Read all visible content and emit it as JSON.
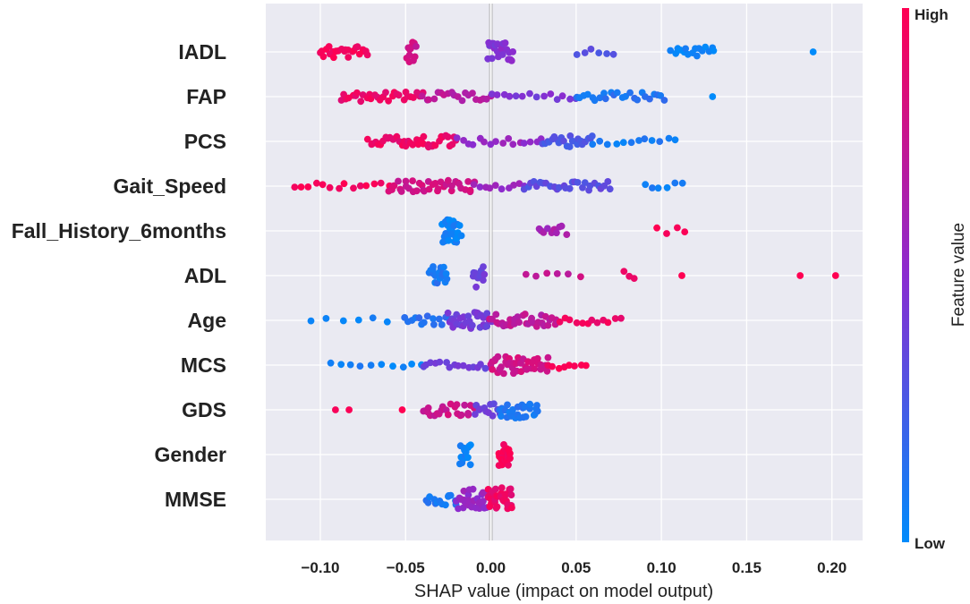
{
  "chart_data": {
    "type": "scatter",
    "subtype": "shap-beeswarm",
    "xlabel": "SHAP value (impact on model output)",
    "xlim": [
      -0.132,
      0.218
    ],
    "xticks": [
      -0.1,
      -0.05,
      0.0,
      0.05,
      0.1,
      0.15,
      0.2
    ],
    "xtick_labels": [
      "−0.10",
      "−0.05",
      "0.00",
      "0.05",
      "0.10",
      "0.15",
      "0.20"
    ],
    "grid": true,
    "zero_line": true,
    "colorbar": {
      "title": "Feature value",
      "high_label": "High",
      "low_label": "Low",
      "high_color": "#ff0052",
      "mid_color": "#8a2cd0",
      "low_color": "#008bfb"
    },
    "features": [
      {
        "name": "IADL",
        "segments": [
          {
            "from": -0.1,
            "to": -0.072,
            "n": 24,
            "v": 0.97
          },
          {
            "from": -0.049,
            "to": -0.044,
            "n": 12,
            "v": 0.78
          },
          {
            "from": -0.002,
            "to": 0.013,
            "n": 22,
            "v": 0.48
          },
          {
            "from": 0.05,
            "to": 0.072,
            "n": 6,
            "v": 0.28
          },
          {
            "from": 0.106,
            "to": 0.131,
            "n": 16,
            "v": 0.06
          },
          {
            "from": 0.189,
            "to": 0.189,
            "n": 1,
            "v": 0.0
          }
        ]
      },
      {
        "name": "FAP",
        "segments": [
          {
            "from": -0.088,
            "to": -0.04,
            "n": 30,
            "v": 0.92
          },
          {
            "from": -0.04,
            "to": 0.0,
            "n": 20,
            "v": 0.7
          },
          {
            "from": 0.0,
            "to": 0.05,
            "n": 14,
            "v": 0.45
          },
          {
            "from": 0.05,
            "to": 0.102,
            "n": 24,
            "v": 0.12
          },
          {
            "from": 0.13,
            "to": 0.13,
            "n": 1,
            "v": 0.0
          }
        ]
      },
      {
        "name": "PCS",
        "segments": [
          {
            "from": -0.072,
            "to": -0.02,
            "n": 40,
            "v": 0.92
          },
          {
            "from": -0.02,
            "to": 0.03,
            "n": 16,
            "v": 0.55
          },
          {
            "from": 0.03,
            "to": 0.06,
            "n": 22,
            "v": 0.28
          },
          {
            "from": 0.06,
            "to": 0.108,
            "n": 12,
            "v": 0.08
          }
        ]
      },
      {
        "name": "Gait_Speed",
        "segments": [
          {
            "from": -0.115,
            "to": -0.06,
            "n": 14,
            "v": 0.95
          },
          {
            "from": -0.06,
            "to": -0.01,
            "n": 38,
            "v": 0.8
          },
          {
            "from": -0.01,
            "to": 0.02,
            "n": 10,
            "v": 0.55
          },
          {
            "from": 0.02,
            "to": 0.07,
            "n": 28,
            "v": 0.32
          },
          {
            "from": 0.09,
            "to": 0.112,
            "n": 6,
            "v": 0.06
          }
        ]
      },
      {
        "name": "Fall_History_6months",
        "segments": [
          {
            "from": -0.028,
            "to": -0.018,
            "n": 36,
            "v": 0.05
          },
          {
            "from": 0.028,
            "to": 0.044,
            "n": 10,
            "v": 0.62
          },
          {
            "from": 0.098,
            "to": 0.114,
            "n": 4,
            "v": 0.98
          }
        ]
      },
      {
        "name": "ADL",
        "segments": [
          {
            "from": -0.036,
            "to": -0.026,
            "n": 20,
            "v": 0.1
          },
          {
            "from": -0.01,
            "to": -0.004,
            "n": 12,
            "v": 0.38
          },
          {
            "from": 0.02,
            "to": 0.052,
            "n": 6,
            "v": 0.75
          },
          {
            "from": 0.078,
            "to": 0.084,
            "n": 3,
            "v": 0.97
          },
          {
            "from": 0.112,
            "to": 0.112,
            "n": 1,
            "v": 1.0
          },
          {
            "from": 0.182,
            "to": 0.202,
            "n": 2,
            "v": 1.0
          }
        ]
      },
      {
        "name": "Age",
        "segments": [
          {
            "from": -0.105,
            "to": -0.06,
            "n": 6,
            "v": 0.02
          },
          {
            "from": -0.05,
            "to": -0.025,
            "n": 14,
            "v": 0.15
          },
          {
            "from": -0.025,
            "to": 0.0,
            "n": 32,
            "v": 0.42
          },
          {
            "from": 0.0,
            "to": 0.04,
            "n": 34,
            "v": 0.72
          },
          {
            "from": 0.04,
            "to": 0.076,
            "n": 12,
            "v": 0.95
          }
        ]
      },
      {
        "name": "MCS",
        "segments": [
          {
            "from": -0.094,
            "to": -0.04,
            "n": 10,
            "v": 0.05
          },
          {
            "from": -0.04,
            "to": 0.0,
            "n": 16,
            "v": 0.4
          },
          {
            "from": 0.0,
            "to": 0.033,
            "n": 42,
            "v": 0.8
          },
          {
            "from": 0.033,
            "to": 0.056,
            "n": 8,
            "v": 0.97
          }
        ]
      },
      {
        "name": "GDS",
        "segments": [
          {
            "from": -0.091,
            "to": -0.083,
            "n": 2,
            "v": 1.0
          },
          {
            "from": -0.052,
            "to": -0.052,
            "n": 1,
            "v": 0.95
          },
          {
            "from": -0.04,
            "to": -0.01,
            "n": 24,
            "v": 0.78
          },
          {
            "from": -0.01,
            "to": 0.005,
            "n": 12,
            "v": 0.4
          },
          {
            "from": 0.005,
            "to": 0.028,
            "n": 28,
            "v": 0.1
          }
        ]
      },
      {
        "name": "Gender",
        "segments": [
          {
            "from": -0.018,
            "to": -0.012,
            "n": 14,
            "v": 0.04
          },
          {
            "from": 0.005,
            "to": 0.011,
            "n": 28,
            "v": 0.98
          }
        ]
      },
      {
        "name": "MMSE",
        "segments": [
          {
            "from": -0.038,
            "to": -0.02,
            "n": 14,
            "v": 0.1
          },
          {
            "from": -0.02,
            "to": -0.002,
            "n": 30,
            "v": 0.55
          },
          {
            "from": -0.002,
            "to": 0.013,
            "n": 36,
            "v": 0.92
          }
        ]
      }
    ]
  }
}
